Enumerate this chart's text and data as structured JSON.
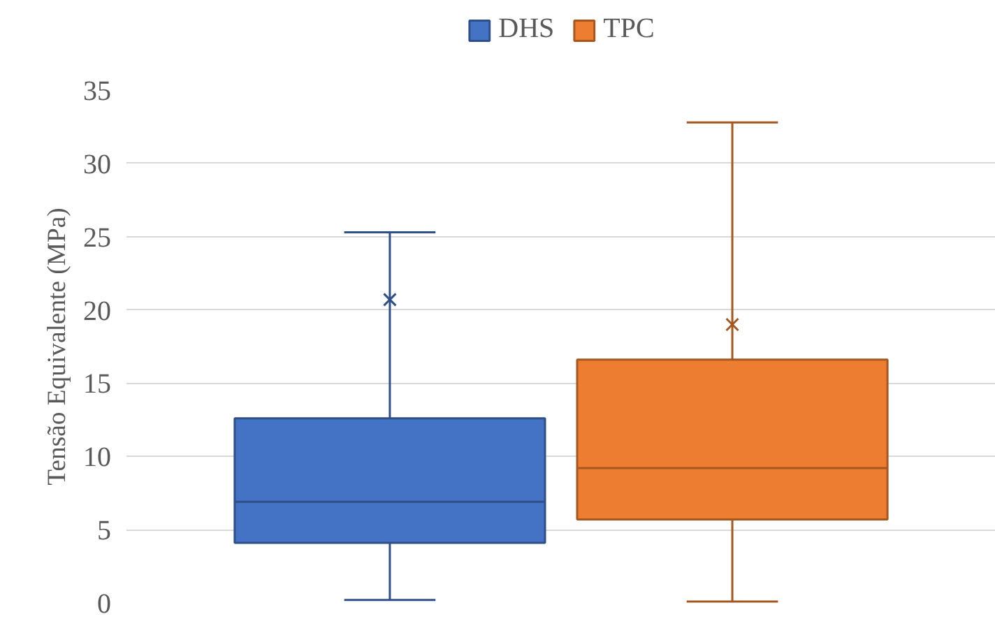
{
  "chart_data": {
    "type": "box",
    "ylabel": "Tensão Equivalente (MPa)",
    "categories": [
      null
    ],
    "ylim": [
      0,
      35
    ],
    "yticks": [
      0,
      5,
      10,
      15,
      20,
      25,
      30,
      35
    ],
    "grid": "y",
    "legend": "top",
    "tick_labels": "y",
    "marker": "cross",
    "series": [
      {
        "name": "DHS",
        "color": "#4472c4",
        "boxes": [
          {
            "low": 0.2,
            "q1": 4.1,
            "median": 6.9,
            "q3": 12.6,
            "high": 25.3,
            "mean": 20.7
          }
        ]
      },
      {
        "name": "TPC",
        "color": "#ed7d31",
        "boxes": [
          {
            "low": 0.1,
            "q1": 5.7,
            "median": 9.2,
            "q3": 16.6,
            "high": 32.8,
            "mean": 19.0
          }
        ]
      }
    ]
  }
}
